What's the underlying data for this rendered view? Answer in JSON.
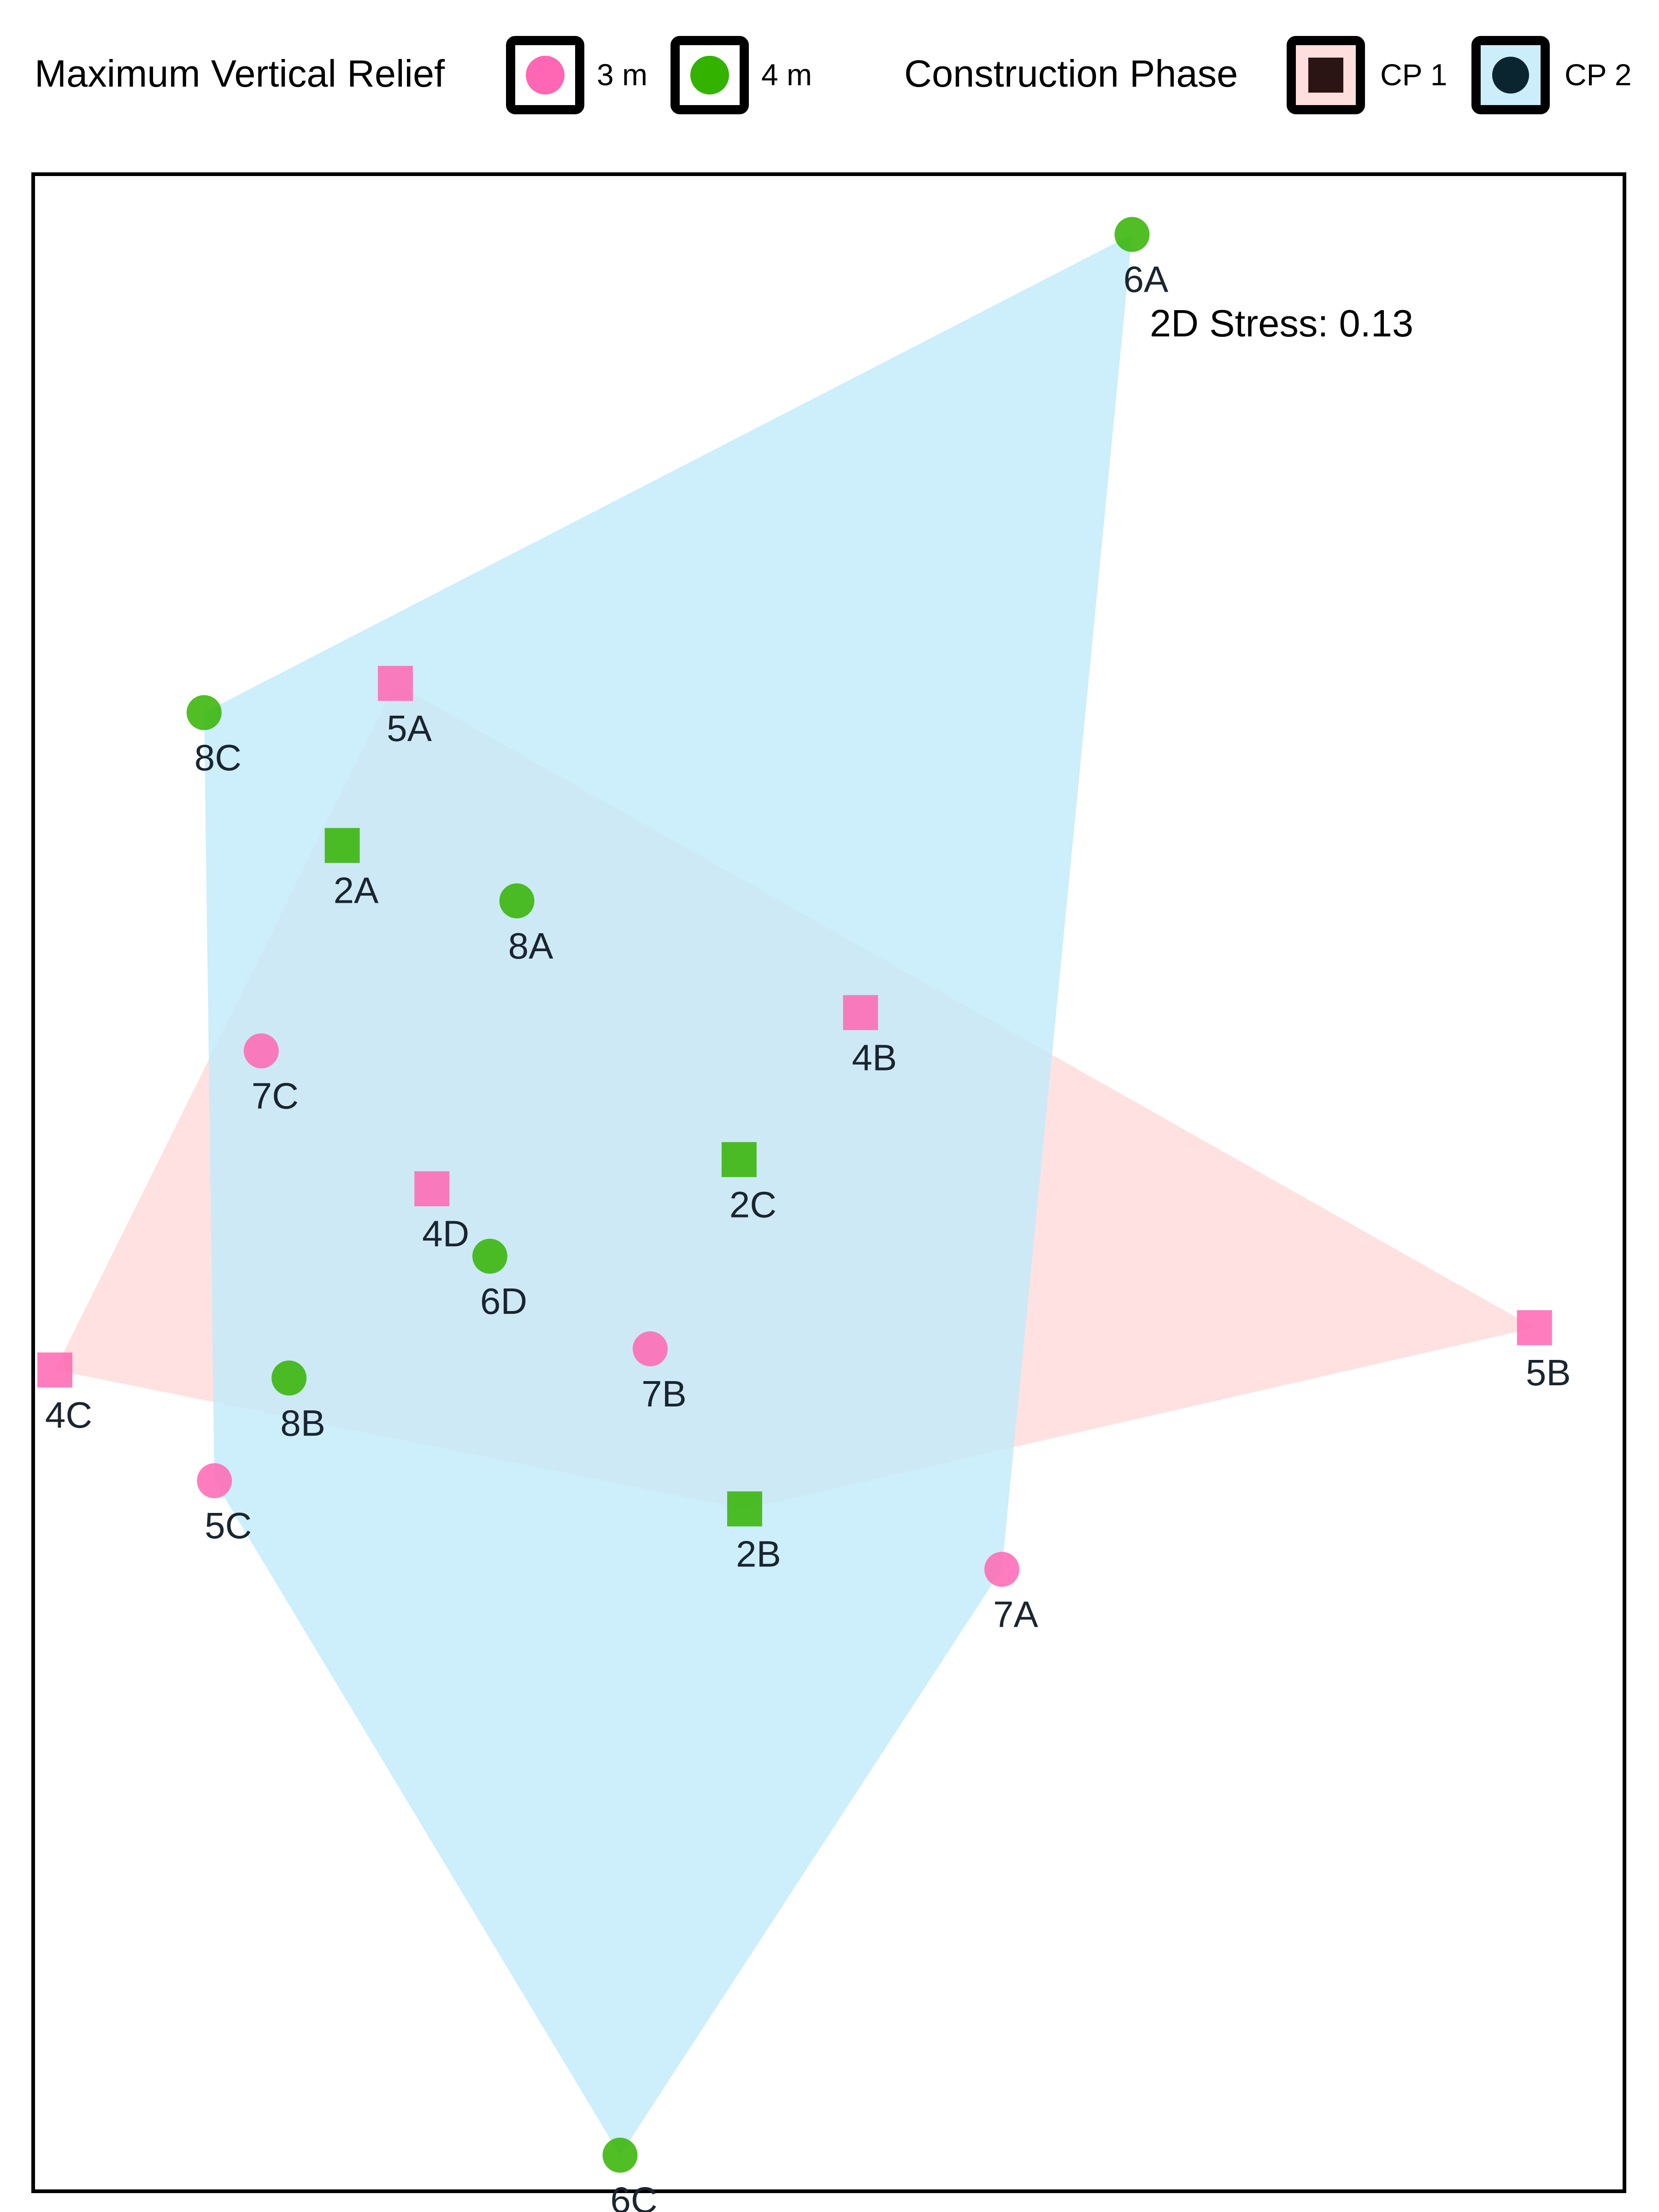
{
  "chart_data": {
    "type": "scatter",
    "title": "",
    "xlabel": "",
    "ylabel": "",
    "annotation": "2D Stress: 0.13",
    "grid": false,
    "legend_placement": "top",
    "xlim": [
      -1.0,
      1.0
    ],
    "ylim": [
      -1.0,
      1.0
    ],
    "legend": {
      "relief_title": "Maximum Vertical Relief",
      "relief_entries": [
        {
          "label": "3 m",
          "color": "#ff66b3"
        },
        {
          "label": "4 m",
          "color": "#33b300"
        }
      ],
      "phase_title": "Construction Phase",
      "phase_entries": [
        {
          "label": "CP 1",
          "fill": "#ffdede",
          "marker": "square",
          "marker_color": "#2b1414"
        },
        {
          "label": "CP 2",
          "fill": "#cceefa",
          "marker": "circle",
          "marker_color": "#0a2530"
        }
      ]
    },
    "hulls": [
      {
        "phase": "CP 1",
        "color": "#ffdada",
        "vertices": [
          "5A",
          "5B",
          "2B",
          "4C"
        ]
      },
      {
        "phase": "CP 2",
        "color": "#c2eafa",
        "vertices": [
          "6A",
          "7A",
          "6C",
          "5C",
          "8C"
        ]
      }
    ],
    "points": [
      {
        "label": "6A",
        "x": 0.382,
        "y": 0.942,
        "relief": "4 m",
        "phase": "CP 2"
      },
      {
        "label": "8C",
        "x": -0.787,
        "y": 0.467,
        "relief": "4 m",
        "phase": "CP 2"
      },
      {
        "label": "5A",
        "x": -0.546,
        "y": 0.496,
        "relief": "3 m",
        "phase": "CP 1"
      },
      {
        "label": "2A",
        "x": -0.613,
        "y": 0.335,
        "relief": "4 m",
        "phase": "CP 1"
      },
      {
        "label": "8A",
        "x": -0.393,
        "y": 0.28,
        "relief": "4 m",
        "phase": "CP 2"
      },
      {
        "label": "4B",
        "x": 0.04,
        "y": 0.169,
        "relief": "3 m",
        "phase": "CP 1"
      },
      {
        "label": "7C",
        "x": -0.715,
        "y": 0.131,
        "relief": "3 m",
        "phase": "CP 2"
      },
      {
        "label": "2C",
        "x": -0.113,
        "y": 0.023,
        "relief": "4 m",
        "phase": "CP 1"
      },
      {
        "label": "4D",
        "x": -0.5,
        "y": -0.006,
        "relief": "3 m",
        "phase": "CP 1"
      },
      {
        "label": "6D",
        "x": -0.427,
        "y": -0.073,
        "relief": "4 m",
        "phase": "CP 2"
      },
      {
        "label": "7B",
        "x": -0.225,
        "y": -0.165,
        "relief": "3 m",
        "phase": "CP 2"
      },
      {
        "label": "5B",
        "x": 0.889,
        "y": -0.144,
        "relief": "3 m",
        "phase": "CP 1"
      },
      {
        "label": "4C",
        "x": -0.975,
        "y": -0.186,
        "relief": "3 m",
        "phase": "CP 1"
      },
      {
        "label": "8B",
        "x": -0.68,
        "y": -0.194,
        "relief": "4 m",
        "phase": "CP 2"
      },
      {
        "label": "5C",
        "x": -0.774,
        "y": -0.296,
        "relief": "3 m",
        "phase": "CP 2"
      },
      {
        "label": "2B",
        "x": -0.106,
        "y": -0.324,
        "relief": "4 m",
        "phase": "CP 1"
      },
      {
        "label": "7A",
        "x": 0.218,
        "y": -0.384,
        "relief": "3 m",
        "phase": "CP 2"
      },
      {
        "label": "6C",
        "x": -0.263,
        "y": -0.966,
        "relief": "4 m",
        "phase": "CP 2"
      }
    ]
  }
}
